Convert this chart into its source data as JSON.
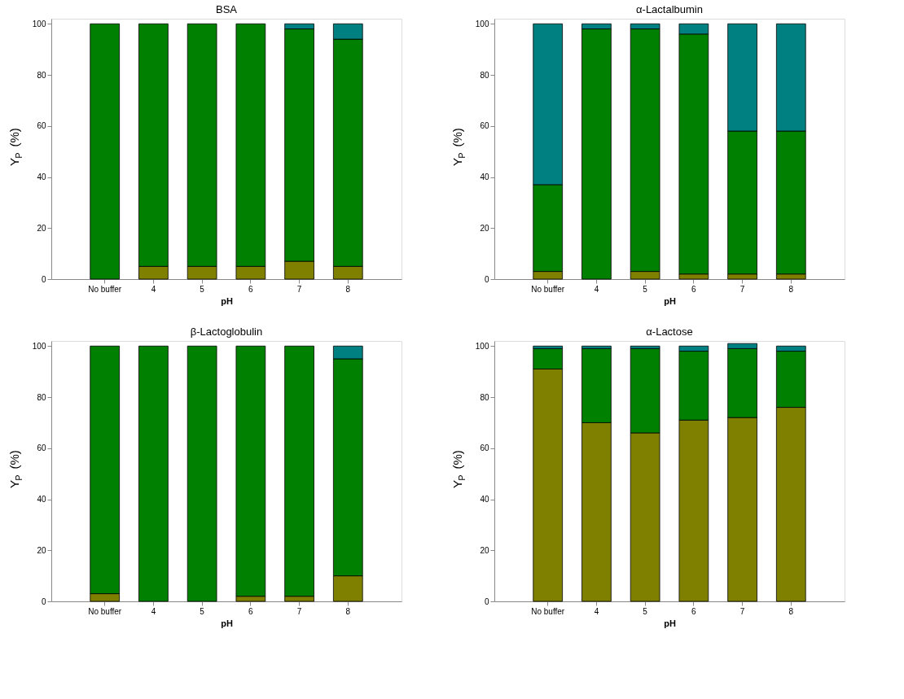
{
  "chart_data": [
    {
      "type": "bar",
      "stacked": true,
      "title": "BSA",
      "xlabel": "pH",
      "ylabel": "Y$_{P}$ (%)",
      "categories": [
        "No buffer",
        "4",
        "5",
        "6",
        "7",
        "8"
      ],
      "ylim": [
        0,
        102
      ],
      "yticks": [
        0,
        20,
        40,
        60,
        80,
        100
      ],
      "grid": false,
      "legend": false,
      "series": [
        {
          "color": "#808000",
          "values": [
            0,
            5,
            5,
            5,
            7,
            5
          ]
        },
        {
          "color": "#008000",
          "values": [
            100,
            95,
            95,
            95,
            91,
            89
          ]
        },
        {
          "color": "#008080",
          "values": [
            0,
            0,
            0,
            0,
            2,
            6
          ]
        }
      ]
    },
    {
      "type": "bar",
      "stacked": true,
      "title": "α-Lactalbumin",
      "xlabel": "pH",
      "ylabel": "Y$_{P}$ (%)",
      "categories": [
        "No buffer",
        "4",
        "5",
        "6",
        "7",
        "8"
      ],
      "ylim": [
        0,
        102
      ],
      "yticks": [
        0,
        20,
        40,
        60,
        80,
        100
      ],
      "grid": false,
      "legend": false,
      "series": [
        {
          "color": "#808000",
          "values": [
            3,
            0,
            3,
            2,
            2,
            2
          ]
        },
        {
          "color": "#008000",
          "values": [
            34,
            98,
            95,
            94,
            56,
            56
          ]
        },
        {
          "color": "#008080",
          "values": [
            63,
            2,
            2,
            4,
            42,
            42
          ]
        }
      ]
    },
    {
      "type": "bar",
      "stacked": true,
      "title": "β-Lactoglobulin",
      "xlabel": "pH",
      "ylabel": "Y$_{P}$ (%)",
      "categories": [
        "No buffer",
        "4",
        "5",
        "6",
        "7",
        "8"
      ],
      "ylim": [
        0,
        102
      ],
      "yticks": [
        0,
        20,
        40,
        60,
        80,
        100
      ],
      "grid": false,
      "legend": false,
      "series": [
        {
          "color": "#808000",
          "values": [
            3,
            0,
            0,
            2,
            2,
            10
          ]
        },
        {
          "color": "#008000",
          "values": [
            97,
            100,
            100,
            98,
            98,
            85
          ]
        },
        {
          "color": "#008080",
          "values": [
            0,
            0,
            0,
            0,
            0,
            5
          ]
        }
      ]
    },
    {
      "type": "bar",
      "stacked": true,
      "title": "α-Lactose",
      "xlabel": "pH",
      "ylabel": "Y$_{P}$ (%)",
      "categories": [
        "No buffer",
        "4",
        "5",
        "6",
        "7",
        "8"
      ],
      "ylim": [
        0,
        102
      ],
      "yticks": [
        0,
        20,
        40,
        60,
        80,
        100
      ],
      "grid": false,
      "legend": false,
      "series": [
        {
          "color": "#808000",
          "values": [
            91,
            70,
            66,
            71,
            72,
            76
          ]
        },
        {
          "color": "#008000",
          "values": [
            8,
            29,
            33,
            27,
            27,
            22
          ]
        },
        {
          "color": "#008080",
          "values": [
            1,
            1,
            1,
            2,
            2,
            2
          ]
        }
      ]
    }
  ]
}
